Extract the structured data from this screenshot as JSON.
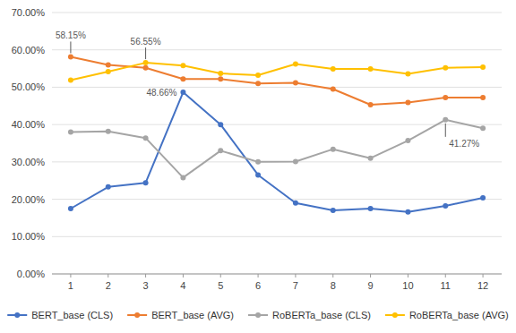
{
  "chart_data": {
    "type": "line",
    "x": [
      1,
      2,
      3,
      4,
      5,
      6,
      7,
      8,
      9,
      10,
      11,
      12
    ],
    "series": [
      {
        "name": "BERT_base (CLS)",
        "color": "#4472C4",
        "values": [
          0.175,
          0.233,
          0.244,
          0.4866,
          0.4,
          0.265,
          0.19,
          0.17,
          0.175,
          0.166,
          0.182,
          0.204
        ]
      },
      {
        "name": "BERT_base (AVG)",
        "color": "#ED7D31",
        "values": [
          0.5815,
          0.56,
          0.552,
          0.522,
          0.522,
          0.51,
          0.512,
          0.495,
          0.453,
          0.459,
          0.472,
          0.472
        ]
      },
      {
        "name": "RoBERTa_base (CLS)",
        "color": "#A5A5A5",
        "values": [
          0.38,
          0.382,
          0.364,
          0.258,
          0.33,
          0.3,
          0.301,
          0.334,
          0.31,
          0.357,
          0.4127,
          0.39
        ]
      },
      {
        "name": "RoBERTa_base (AVG)",
        "color": "#FFC000",
        "values": [
          0.519,
          0.542,
          0.5655,
          0.558,
          0.537,
          0.532,
          0.562,
          0.549,
          0.549,
          0.536,
          0.552,
          0.554
        ]
      }
    ],
    "xlim": [
      0.5,
      12.5
    ],
    "xticks": [
      1,
      2,
      3,
      4,
      5,
      6,
      7,
      8,
      9,
      10,
      11,
      12
    ],
    "ylim": [
      0.0,
      0.7
    ],
    "yticks": [
      {
        "value": 0.0,
        "label": "0.00%"
      },
      {
        "value": 0.1,
        "label": "10.00%"
      },
      {
        "value": 0.2,
        "label": "20.00%"
      },
      {
        "value": 0.3,
        "label": "30.00%"
      },
      {
        "value": 0.4,
        "label": "40.00%"
      },
      {
        "value": 0.5,
        "label": "50.00%"
      },
      {
        "value": 0.6,
        "label": "60.00%"
      },
      {
        "value": 0.7,
        "label": "70.00%"
      }
    ],
    "annotations": [
      {
        "text": "58.15%",
        "x": 1,
        "y": 0.5815
      },
      {
        "text": "56.55%",
        "x": 3,
        "y": 0.5655
      },
      {
        "text": "48.66%",
        "x": 4,
        "y": 0.4866
      },
      {
        "text": "41.27%",
        "x": 11,
        "y": 0.4127
      }
    ],
    "marker": "circle",
    "grid": true,
    "legend": "bottom"
  }
}
